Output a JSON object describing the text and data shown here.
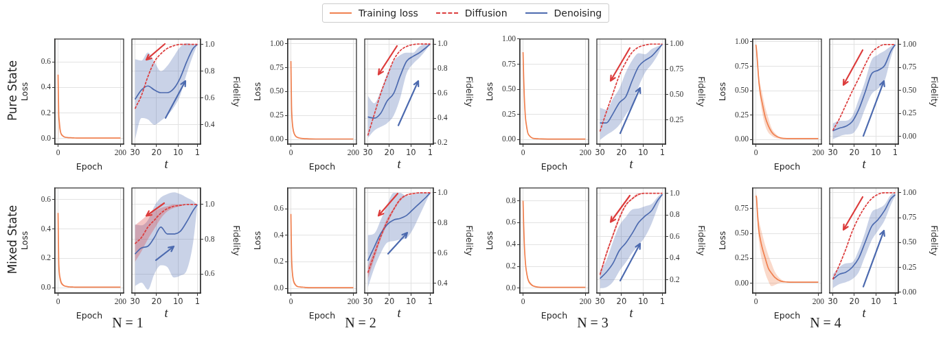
{
  "chart_data": [
    {
      "type": "line",
      "xlabel": "Epoch",
      "ylabel": "Loss",
      "legend": "top",
      "grid": true,
      "annotations": [
        "Pure State"
      ],
      "x": [
        0,
        2,
        4,
        6,
        8,
        10,
        15,
        20,
        30,
        40,
        50,
        60,
        80,
        100,
        150,
        200
      ],
      "xlim": [
        -10,
        210
      ],
      "xticks": [
        0,
        200
      ],
      "ylim": [
        -0.045,
        0.78
      ],
      "yticks": [
        {
          "value": 0,
          "label": "0.0"
        },
        0.2,
        0.4,
        0.6
      ],
      "series": [
        {
          "name": "Training loss",
          "color": "#f0804f",
          "values": [
            0.5,
            0.2,
            0.13,
            0.08,
            0.05,
            0.035,
            0.02,
            0.012,
            0.007,
            0.005,
            0.004,
            0.003,
            0.003,
            0.003,
            0.003,
            0.003
          ],
          "lower": [
            0.25,
            -0.01,
            0.08,
            0.06,
            0.04,
            0.025,
            0.015,
            0.009,
            0.005,
            0.004,
            0.003,
            0.002,
            0.002,
            0.002,
            0.002,
            0.002
          ],
          "upper": [
            0.75,
            0.3,
            0.16,
            0.1,
            0.06,
            0.045,
            0.025,
            0.015,
            0.009,
            0.006,
            0.005,
            0.004,
            0.004,
            0.004,
            0.004,
            0.004
          ]
        }
      ]
    },
    {
      "type": "line",
      "xlabel": "t",
      "y2label": "Fidelity",
      "legend": "top",
      "grid": true,
      "x": [
        30,
        27,
        24,
        21,
        18,
        15,
        12,
        9,
        6,
        3,
        1
      ],
      "xlim": [
        31.45,
        -0.45
      ],
      "xticks": [
        30,
        20,
        10,
        1
      ],
      "y2lim": [
        0.256,
        1.04
      ],
      "y2ticks": [
        {
          "value": 1,
          "label": "1.0"
        },
        0.8,
        0.6,
        0.4
      ],
      "series": [
        {
          "name": "Diffusion",
          "color": "#dc3c3c",
          "line_style": "dashed",
          "axis": "y2",
          "values": [
            0.52,
            0.62,
            0.76,
            0.87,
            0.93,
            0.97,
            0.99,
            1.0,
            1.0,
            1.0,
            1.0
          ]
        },
        {
          "name": "Denoising",
          "color": "#4c6aaf",
          "axis": "y2",
          "values": [
            0.59,
            0.66,
            0.69,
            0.66,
            0.64,
            0.64,
            0.67,
            0.75,
            0.87,
            0.97,
            1.0
          ],
          "lower": [
            0.29,
            0.45,
            0.44,
            0.4,
            0.43,
            0.47,
            0.53,
            0.62,
            0.78,
            0.92,
            1.0
          ],
          "upper": [
            0.89,
            0.88,
            0.94,
            0.87,
            0.8,
            0.84,
            0.91,
            0.98,
            1.01,
            1.0,
            1.0
          ]
        }
      ]
    },
    {
      "type": "line",
      "xlabel": "Epoch",
      "ylabel": "Loss",
      "grid": true,
      "x": [
        0,
        2,
        4,
        6,
        8,
        10,
        15,
        20,
        30,
        40,
        50,
        60,
        80,
        100,
        150,
        200
      ],
      "xlim": [
        -10,
        210
      ],
      "xticks": [
        0,
        200
      ],
      "ylim": [
        -0.05,
        1.05
      ],
      "yticks": [
        {
          "value": 0,
          "label": "0.00"
        },
        0.25,
        {
          "value": 0.5,
          "label": "0.50"
        },
        0.75,
        {
          "value": 1,
          "label": "1.00"
        }
      ],
      "series": [
        {
          "color": "#f0804f",
          "values": [
            0.82,
            0.35,
            0.2,
            0.13,
            0.09,
            0.065,
            0.035,
            0.022,
            0.012,
            0.008,
            0.006,
            0.005,
            0.004,
            0.004,
            0.004,
            0.004
          ],
          "lower": [
            0.64,
            0.28,
            0.14,
            0.09,
            0.07,
            0.05,
            0.025,
            0.016,
            0.009,
            0.006,
            0.005,
            0.004,
            0.003,
            0.003,
            0.003,
            0.003
          ],
          "upper": [
            1.0,
            0.45,
            0.27,
            0.17,
            0.11,
            0.08,
            0.045,
            0.028,
            0.015,
            0.01,
            0.007,
            0.006,
            0.005,
            0.005,
            0.005,
            0.005
          ]
        }
      ]
    },
    {
      "type": "line",
      "xlabel": "t",
      "y2label": "Fidelity",
      "grid": true,
      "x": [
        30,
        27,
        24,
        21,
        18,
        15,
        12,
        9,
        6,
        3,
        1
      ],
      "xlim": [
        31.45,
        -0.45
      ],
      "xticks": [
        30,
        20,
        10,
        1
      ],
      "y2lim": [
        0.19,
        1.04
      ],
      "y2ticks": [
        {
          "value": 1,
          "label": "1.0"
        },
        0.8,
        0.6,
        0.4,
        0.2
      ],
      "series": [
        {
          "color": "#dc3c3c",
          "line_style": "dashed",
          "axis": "y2",
          "values": [
            0.26,
            0.43,
            0.6,
            0.74,
            0.87,
            0.945,
            0.98,
            0.995,
            1.0,
            1.0,
            1.0
          ]
        },
        {
          "color": "#4c6aaf",
          "axis": "y2",
          "values": [
            0.41,
            0.4,
            0.44,
            0.54,
            0.6,
            0.74,
            0.86,
            0.9,
            0.93,
            0.97,
            1.0
          ],
          "lower": [
            0.24,
            0.3,
            0.33,
            0.36,
            0.42,
            0.56,
            0.76,
            0.84,
            0.89,
            0.95,
            1.0
          ],
          "upper": [
            0.58,
            0.52,
            0.62,
            0.76,
            0.86,
            0.91,
            0.93,
            0.93,
            0.98,
            1.0,
            1.0
          ]
        }
      ]
    },
    {
      "type": "line",
      "xlabel": "Epoch",
      "ylabel": "Loss",
      "grid": true,
      "x": [
        0,
        2,
        4,
        6,
        8,
        10,
        15,
        20,
        30,
        40,
        50,
        60,
        80,
        100,
        150,
        200
      ],
      "xlim": [
        -10,
        210
      ],
      "xticks": [
        0,
        200
      ],
      "ylim": [
        -0.045,
        1.0
      ],
      "yticks": [
        {
          "value": 0,
          "label": "0.00"
        },
        0.25,
        {
          "value": 0.5,
          "label": "0.50"
        },
        0.75,
        {
          "value": 1,
          "label": "1.00"
        }
      ],
      "series": [
        {
          "color": "#f0804f",
          "values": [
            0.87,
            0.62,
            0.43,
            0.3,
            0.21,
            0.16,
            0.07,
            0.04,
            0.015,
            0.01,
            0.008,
            0.007,
            0.006,
            0.006,
            0.006,
            0.006
          ],
          "lower": [
            0.78,
            0.57,
            0.4,
            0.27,
            0.19,
            0.14,
            0.06,
            0.035,
            0.012,
            0.008,
            0.007,
            0.006,
            0.005,
            0.005,
            0.005,
            0.005
          ],
          "upper": [
            0.96,
            0.67,
            0.46,
            0.33,
            0.23,
            0.18,
            0.08,
            0.045,
            0.018,
            0.012,
            0.009,
            0.008,
            0.007,
            0.007,
            0.007,
            0.007
          ]
        }
      ]
    },
    {
      "type": "line",
      "xlabel": "t",
      "y2label": "Fidelity",
      "grid": true,
      "x": [
        30,
        27,
        24,
        21,
        18,
        15,
        12,
        9,
        6,
        3,
        1
      ],
      "xlim": [
        31.45,
        -0.45
      ],
      "xticks": [
        30,
        20,
        10,
        1
      ],
      "y2lim": [
        0.01,
        1.05
      ],
      "y2ticks": [
        {
          "value": 1,
          "label": "1.00"
        },
        0.75,
        {
          "value": 0.5,
          "label": "0.50"
        },
        0.25
      ],
      "series": [
        {
          "color": "#dc3c3c",
          "line_style": "dashed",
          "axis": "y2",
          "values": [
            0.135,
            0.33,
            0.51,
            0.69,
            0.82,
            0.92,
            0.97,
            0.99,
            1.0,
            1.0,
            1.0
          ]
        },
        {
          "color": "#4c6aaf",
          "axis": "y2",
          "values": [
            0.22,
            0.22,
            0.31,
            0.42,
            0.48,
            0.64,
            0.78,
            0.84,
            0.88,
            0.95,
            1.0
          ],
          "lower": [
            0.05,
            0.1,
            0.14,
            0.2,
            0.3,
            0.4,
            0.58,
            0.72,
            0.8,
            0.9,
            1.0
          ],
          "upper": [
            0.37,
            0.35,
            0.46,
            0.56,
            0.72,
            0.84,
            0.91,
            0.9,
            0.95,
            0.98,
            1.0
          ]
        }
      ]
    },
    {
      "type": "line",
      "xlabel": "Epoch",
      "ylabel": "Loss",
      "grid": true,
      "x": [
        0,
        2,
        4,
        6,
        8,
        10,
        15,
        20,
        30,
        40,
        50,
        60,
        80,
        100,
        150,
        200
      ],
      "xlim": [
        -10,
        210
      ],
      "xticks": [
        0,
        200
      ],
      "ylim": [
        -0.047,
        1.028
      ],
      "yticks": [
        {
          "value": 0,
          "label": "0.00"
        },
        0.25,
        {
          "value": 0.5,
          "label": "0.50"
        },
        0.75,
        {
          "value": 1,
          "label": "1.00"
        }
      ],
      "series": [
        {
          "color": "#f0804f",
          "values": [
            0.97,
            0.92,
            0.84,
            0.75,
            0.66,
            0.58,
            0.46,
            0.38,
            0.23,
            0.14,
            0.08,
            0.045,
            0.015,
            0.01,
            0.01,
            0.01
          ],
          "lower": [
            0.95,
            0.88,
            0.79,
            0.7,
            0.6,
            0.52,
            0.38,
            0.28,
            0.14,
            0.07,
            0.04,
            0.02,
            0.008,
            0.008,
            0.008,
            0.008
          ],
          "upper": [
            0.98,
            0.95,
            0.88,
            0.8,
            0.72,
            0.65,
            0.55,
            0.48,
            0.33,
            0.22,
            0.12,
            0.07,
            0.02,
            0.013,
            0.012,
            0.012
          ]
        }
      ]
    },
    {
      "type": "line",
      "xlabel": "t",
      "y2label": "Fidelity",
      "grid": true,
      "x": [
        30,
        27,
        24,
        21,
        18,
        15,
        12,
        9,
        6,
        3,
        1
      ],
      "xlim": [
        31.45,
        -0.45
      ],
      "xticks": [
        30,
        20,
        10,
        1
      ],
      "y2lim": [
        -0.084,
        1.06
      ],
      "y2ticks": [
        {
          "value": 1,
          "label": "1.00"
        },
        0.75,
        {
          "value": 0.5,
          "label": "0.50"
        },
        0.25,
        {
          "value": 0,
          "label": "0.00"
        }
      ],
      "series": [
        {
          "color": "#dc3c3c",
          "line_style": "dashed",
          "axis": "y2",
          "values": [
            0.064,
            0.19,
            0.34,
            0.49,
            0.63,
            0.78,
            0.91,
            0.97,
            1.0,
            1.0,
            1.0
          ]
        },
        {
          "color": "#4c6aaf",
          "axis": "y2",
          "values": [
            0.06,
            0.09,
            0.11,
            0.16,
            0.29,
            0.48,
            0.68,
            0.72,
            0.77,
            0.93,
            1.0
          ],
          "lower": [
            -0.03,
            0.0,
            0.02,
            0.03,
            0.12,
            0.3,
            0.46,
            0.52,
            0.6,
            0.86,
            1.0
          ],
          "upper": [
            0.14,
            0.17,
            0.17,
            0.22,
            0.4,
            0.6,
            0.83,
            0.89,
            0.93,
            0.98,
            1.0
          ]
        }
      ]
    },
    {
      "type": "line",
      "xlabel": "Epoch",
      "ylabel": "Loss",
      "grid": true,
      "annotations": [
        "Mixed State",
        "N = 1"
      ],
      "x": [
        0,
        2,
        4,
        6,
        8,
        10,
        15,
        20,
        30,
        40,
        50,
        60,
        80,
        100,
        150,
        200
      ],
      "xlim": [
        -10,
        210
      ],
      "xticks": [
        0,
        200
      ],
      "ylim": [
        -0.037,
        0.68
      ],
      "yticks": [
        {
          "value": 0,
          "label": "0.0"
        },
        0.2,
        0.4,
        0.6
      ],
      "series": [
        {
          "color": "#f0804f",
          "values": [
            0.51,
            0.19,
            0.1,
            0.07,
            0.05,
            0.035,
            0.02,
            0.012,
            0.007,
            0.005,
            0.004,
            0.003,
            0.003,
            0.003,
            0.003,
            0.003
          ],
          "lower": [
            0.37,
            0.13,
            0.06,
            0.04,
            0.03,
            0.02,
            0.015,
            0.009,
            0.005,
            0.004,
            0.003,
            0.002,
            0.002,
            0.002,
            0.002,
            0.002
          ],
          "upper": [
            0.65,
            0.25,
            0.14,
            0.1,
            0.07,
            0.05,
            0.025,
            0.015,
            0.009,
            0.006,
            0.005,
            0.004,
            0.004,
            0.004,
            0.004,
            0.004
          ]
        }
      ]
    },
    {
      "type": "line",
      "xlabel": "t",
      "y2label": "Fidelity",
      "grid": true,
      "x": [
        30,
        27,
        24,
        21,
        18,
        15,
        12,
        9,
        6,
        3,
        1
      ],
      "xlim": [
        31.45,
        -0.45
      ],
      "xticks": [
        30,
        20,
        10,
        1
      ],
      "y2lim": [
        0.49,
        1.095
      ],
      "y2ticks": [
        {
          "value": 1,
          "label": "1.0"
        },
        0.8,
        0.6
      ],
      "series": [
        {
          "color": "#dc3c3c",
          "line_style": "dashed",
          "axis": "y2",
          "values": [
            0.774,
            0.81,
            0.87,
            0.91,
            0.95,
            0.976,
            0.99,
            0.995,
            1.0,
            1.0,
            1.0
          ],
          "lower": [
            0.67,
            0.73,
            0.8,
            0.86,
            0.92,
            0.96,
            0.98,
            0.99,
            1.0,
            1.0,
            1.0
          ],
          "upper": [
            0.88,
            0.91,
            0.94,
            0.96,
            0.98,
            0.99,
            1.0,
            1.0,
            1.0,
            1.0,
            1.0
          ]
        },
        {
          "color": "#4c6aaf",
          "axis": "y2",
          "values": [
            0.715,
            0.75,
            0.76,
            0.81,
            0.87,
            0.83,
            0.83,
            0.845,
            0.9,
            0.965,
            1.0
          ],
          "lower": [
            0.53,
            0.55,
            0.51,
            0.6,
            0.65,
            0.64,
            0.58,
            0.59,
            0.62,
            0.78,
            1.0
          ],
          "upper": [
            0.885,
            0.88,
            0.91,
            0.99,
            1.04,
            1.06,
            1.07,
            1.06,
            1.04,
            1.02,
            1.0
          ]
        }
      ]
    },
    {
      "type": "line",
      "xlabel": "Epoch",
      "ylabel": "Loss",
      "grid": true,
      "annotations": [
        "N = 2"
      ],
      "x": [
        0,
        2,
        4,
        6,
        8,
        10,
        15,
        20,
        30,
        40,
        50,
        60,
        80,
        100,
        150,
        200
      ],
      "xlim": [
        -10,
        210
      ],
      "xticks": [
        0,
        200
      ],
      "ylim": [
        -0.036,
        0.756
      ],
      "yticks": [
        {
          "value": 0,
          "label": "0.0"
        },
        0.2,
        0.4,
        0.6
      ],
      "series": [
        {
          "color": "#f0804f",
          "values": [
            0.56,
            0.25,
            0.14,
            0.09,
            0.06,
            0.045,
            0.025,
            0.015,
            0.01,
            0.008,
            0.006,
            0.005,
            0.005,
            0.005,
            0.005,
            0.005
          ],
          "lower": [
            0.4,
            0.2,
            0.1,
            0.06,
            0.04,
            0.03,
            0.018,
            0.01,
            0.007,
            0.006,
            0.004,
            0.004,
            0.004,
            0.004,
            0.004,
            0.004
          ],
          "upper": [
            0.72,
            0.3,
            0.18,
            0.12,
            0.08,
            0.06,
            0.032,
            0.02,
            0.013,
            0.01,
            0.008,
            0.007,
            0.006,
            0.006,
            0.006,
            0.006
          ]
        }
      ]
    },
    {
      "type": "line",
      "xlabel": "t",
      "y2label": "Fidelity",
      "grid": true,
      "x": [
        30,
        27,
        24,
        21,
        18,
        15,
        12,
        9,
        6,
        3,
        1
      ],
      "xlim": [
        31.45,
        -0.45
      ],
      "xticks": [
        30,
        20,
        10,
        1
      ],
      "y2lim": [
        0.335,
        1.032
      ],
      "y2ticks": [
        {
          "value": 1,
          "label": "1.0"
        },
        0.8,
        0.6,
        0.4
      ],
      "series": [
        {
          "color": "#dc3c3c",
          "line_style": "dashed",
          "axis": "y2",
          "values": [
            0.47,
            0.59,
            0.71,
            0.81,
            0.89,
            0.955,
            0.985,
            0.995,
            1.0,
            1.0,
            1.0
          ],
          "lower": [
            0.43,
            0.56,
            0.69,
            0.79,
            0.88,
            0.945,
            0.98,
            0.99,
            1.0,
            1.0,
            1.0
          ],
          "upper": [
            0.51,
            0.62,
            0.73,
            0.83,
            0.9,
            0.965,
            0.99,
            1.0,
            1.0,
            1.0,
            1.0
          ]
        },
        {
          "color": "#4c6aaf",
          "axis": "y2",
          "values": [
            0.55,
            0.64,
            0.73,
            0.79,
            0.82,
            0.83,
            0.85,
            0.89,
            0.93,
            0.97,
            1.0
          ],
          "lower": [
            0.37,
            0.5,
            0.6,
            0.67,
            0.68,
            0.69,
            0.7,
            0.76,
            0.85,
            0.94,
            1.0
          ],
          "upper": [
            0.72,
            0.73,
            0.82,
            0.92,
            1.0,
            1.0,
            0.98,
            0.99,
            1.0,
            1.0,
            1.0
          ]
        }
      ]
    },
    {
      "type": "line",
      "xlabel": "Epoch",
      "ylabel": "Loss",
      "grid": true,
      "annotations": [
        "N = 3"
      ],
      "x": [
        0,
        2,
        4,
        6,
        8,
        10,
        15,
        20,
        30,
        40,
        50,
        60,
        80,
        100,
        150,
        200
      ],
      "xlim": [
        -10,
        210
      ],
      "xticks": [
        0,
        200
      ],
      "ylim": [
        -0.044,
        0.917
      ],
      "yticks": [
        {
          "value": 0,
          "label": "0.0"
        },
        0.2,
        0.4,
        0.6,
        0.8
      ],
      "series": [
        {
          "color": "#f0804f",
          "values": [
            0.8,
            0.58,
            0.41,
            0.3,
            0.22,
            0.17,
            0.09,
            0.055,
            0.025,
            0.015,
            0.01,
            0.009,
            0.008,
            0.008,
            0.008,
            0.008
          ],
          "lower": [
            0.73,
            0.54,
            0.38,
            0.27,
            0.19,
            0.15,
            0.07,
            0.04,
            0.018,
            0.01,
            0.007,
            0.007,
            0.007,
            0.007,
            0.007,
            0.007
          ],
          "upper": [
            0.87,
            0.62,
            0.44,
            0.33,
            0.25,
            0.19,
            0.11,
            0.07,
            0.033,
            0.02,
            0.013,
            0.011,
            0.01,
            0.01,
            0.01,
            0.01
          ]
        }
      ]
    },
    {
      "type": "line",
      "xlabel": "t",
      "y2label": "Fidelity",
      "grid": true,
      "x": [
        30,
        27,
        24,
        21,
        18,
        15,
        12,
        9,
        6,
        3,
        1
      ],
      "xlim": [
        31.45,
        -0.45
      ],
      "xticks": [
        30,
        20,
        10,
        1
      ],
      "y2lim": [
        0.076,
        1.049
      ],
      "y2ticks": [
        {
          "value": 1,
          "label": "1.0"
        },
        0.8,
        0.6,
        0.4,
        0.2
      ],
      "series": [
        {
          "color": "#dc3c3c",
          "line_style": "dashed",
          "axis": "y2",
          "values": [
            0.246,
            0.44,
            0.61,
            0.77,
            0.89,
            0.95,
            0.99,
            1.0,
            1.0,
            1.0,
            1.0
          ],
          "lower": [
            0.22,
            0.42,
            0.59,
            0.75,
            0.88,
            0.94,
            0.98,
            1.0,
            1.0,
            1.0,
            1.0
          ],
          "upper": [
            0.27,
            0.46,
            0.63,
            0.79,
            0.9,
            0.96,
            1.0,
            1.0,
            1.0,
            1.0,
            1.0
          ]
        },
        {
          "color": "#4c6aaf",
          "axis": "y2",
          "values": [
            0.21,
            0.27,
            0.35,
            0.47,
            0.54,
            0.63,
            0.73,
            0.79,
            0.84,
            0.94,
            0.99
          ],
          "lower": [
            0.12,
            0.13,
            0.18,
            0.28,
            0.36,
            0.45,
            0.52,
            0.6,
            0.72,
            0.88,
            0.99
          ],
          "upper": [
            0.28,
            0.38,
            0.55,
            0.7,
            0.78,
            0.85,
            0.86,
            0.88,
            0.9,
            0.97,
            1.0
          ]
        }
      ]
    },
    {
      "type": "line",
      "xlabel": "Epoch",
      "ylabel": "Loss",
      "grid": true,
      "annotations": [
        "N = 4"
      ],
      "x": [
        0,
        2,
        4,
        6,
        8,
        10,
        15,
        20,
        30,
        40,
        50,
        60,
        80,
        100,
        150,
        200
      ],
      "xlim": [
        -10,
        210
      ],
      "xticks": [
        0,
        200
      ],
      "ylim": [
        -0.1,
        0.958
      ],
      "yticks": [
        {
          "value": 0,
          "label": "0.00"
        },
        0.25,
        {
          "value": 0.5,
          "label": "0.50"
        },
        0.75
      ],
      "series": [
        {
          "color": "#f0804f",
          "values": [
            0.88,
            0.86,
            0.76,
            0.66,
            0.58,
            0.52,
            0.43,
            0.36,
            0.25,
            0.15,
            0.1,
            0.06,
            0.02,
            0.012,
            0.01,
            0.01
          ],
          "lower": [
            0.86,
            0.82,
            0.7,
            0.58,
            0.48,
            0.42,
            0.3,
            0.22,
            0.1,
            0.02,
            -0.03,
            -0.02,
            0.005,
            0.009,
            0.008,
            0.008
          ],
          "upper": [
            0.9,
            0.89,
            0.82,
            0.74,
            0.68,
            0.63,
            0.56,
            0.5,
            0.38,
            0.28,
            0.2,
            0.12,
            0.04,
            0.015,
            0.012,
            0.012
          ]
        }
      ]
    },
    {
      "type": "line",
      "xlabel": "t",
      "y2label": "Fidelity",
      "grid": true,
      "x": [
        30,
        27,
        24,
        21,
        18,
        15,
        12,
        9,
        6,
        3,
        1
      ],
      "xlim": [
        31.45,
        -0.45
      ],
      "xticks": [
        30,
        20,
        10,
        1
      ],
      "y2lim": [
        -0.009,
        1.048
      ],
      "y2ticks": [
        {
          "value": 1,
          "label": "1.00"
        },
        0.75,
        {
          "value": 0.5,
          "label": "0.50"
        },
        0.25,
        {
          "value": 0,
          "label": "0.00"
        }
      ],
      "series": [
        {
          "color": "#dc3c3c",
          "line_style": "dashed",
          "axis": "y2",
          "values": [
            0.13,
            0.27,
            0.43,
            0.61,
            0.75,
            0.86,
            0.94,
            0.985,
            1.0,
            1.0,
            1.0
          ]
        },
        {
          "color": "#4c6aaf",
          "axis": "y2",
          "values": [
            0.13,
            0.18,
            0.2,
            0.25,
            0.34,
            0.5,
            0.66,
            0.73,
            0.82,
            0.94,
            0.98
          ],
          "lower": [
            0.04,
            0.08,
            0.1,
            0.13,
            0.2,
            0.36,
            0.52,
            0.62,
            0.72,
            0.88,
            0.97
          ],
          "upper": [
            0.18,
            0.25,
            0.29,
            0.3,
            0.42,
            0.6,
            0.8,
            0.84,
            0.88,
            0.98,
            1.0
          ]
        }
      ]
    }
  ]
}
